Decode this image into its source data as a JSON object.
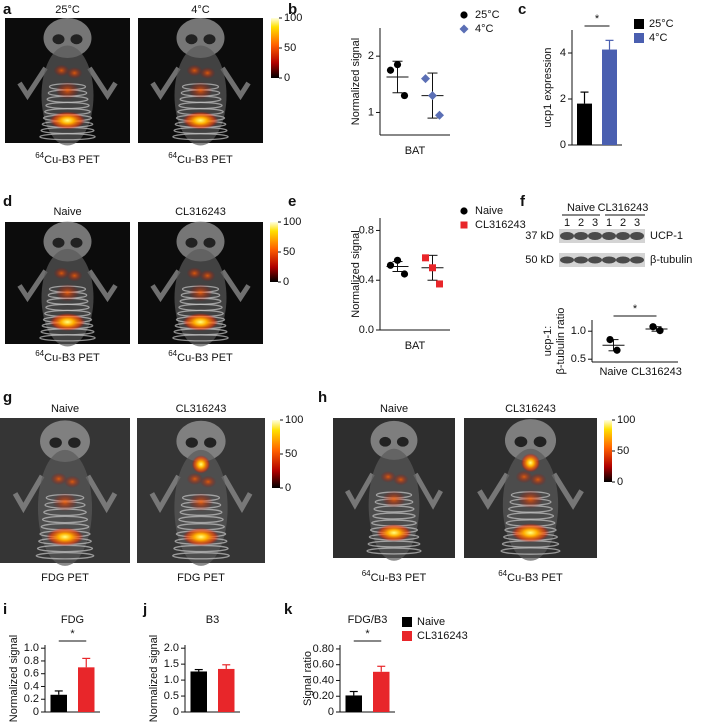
{
  "images": [
    {
      "panel": "a",
      "titles": [
        "25°C",
        "4°C"
      ],
      "captions": [
        {
          "sup": "64",
          "text": "Cu-B3 PET"
        },
        {
          "sup": "64",
          "text": "Cu-B3 PET"
        }
      ],
      "colorbar_range": [
        0,
        100
      ],
      "colorbar_ticks": [
        100,
        50,
        0
      ]
    },
    {
      "panel": "d",
      "titles": [
        "Naive",
        "CL316243"
      ],
      "captions": [
        {
          "sup": "64",
          "text": "Cu-B3 PET"
        },
        {
          "sup": "64",
          "text": "Cu-B3 PET"
        }
      ],
      "colorbar_range": [
        0,
        100
      ],
      "colorbar_ticks": [
        100,
        50,
        0
      ]
    },
    {
      "panel": "g",
      "titles": [
        "Naive",
        "CL316243"
      ],
      "captions": [
        "FDG PET",
        "FDG PET"
      ],
      "colorbar_range": [
        0,
        100
      ],
      "colorbar_ticks": [
        100,
        50,
        0
      ]
    },
    {
      "panel": "h",
      "titles": [
        "Naive",
        "CL316243"
      ],
      "captions": [
        {
          "sup": "64",
          "text": "Cu-B3 PET"
        },
        {
          "sup": "64",
          "text": "Cu-B3 PET"
        }
      ],
      "colorbar_range": [
        0,
        100
      ],
      "colorbar_ticks": [
        100,
        50,
        0
      ]
    }
  ],
  "blot": {
    "groups": [
      "Naive",
      "CL316243"
    ],
    "lanes": [
      "1",
      "2",
      "3",
      "1",
      "2",
      "3"
    ],
    "markers": [
      "37 kD",
      "50 kD"
    ],
    "bands": [
      "UCP-1",
      "β-tubulin"
    ]
  },
  "chart_data": [
    {
      "panel": "b",
      "type": "dot",
      "y_label": "Normalized signal",
      "x_label": "BAT",
      "ylim": [
        0.6,
        2.5
      ],
      "yticks": [
        1,
        2
      ],
      "series": [
        {
          "name": "25°C",
          "color": "#000000",
          "marker": "circle",
          "values": [
            1.75,
            1.85,
            1.3
          ],
          "mean": 1.63,
          "error": 0.28
        },
        {
          "name": "4°C",
          "color": "#5b6fb5",
          "marker": "diamond",
          "values": [
            1.6,
            1.3,
            0.95
          ],
          "mean": 1.3,
          "error": 0.4
        }
      ]
    },
    {
      "panel": "c",
      "type": "bar",
      "y_label": "ucp1 expression",
      "ylim": [
        0,
        5
      ],
      "yticks": [
        0,
        2,
        4
      ],
      "annotation": "*",
      "series": [
        {
          "name": "25°C",
          "color": "#000000",
          "values": [
            1.8
          ],
          "errors": [
            0.5
          ]
        },
        {
          "name": "4°C",
          "color": "#4a5fb0",
          "values": [
            4.15
          ],
          "errors": [
            0.4
          ]
        }
      ]
    },
    {
      "panel": "e",
      "type": "dot",
      "y_label": "Normalized signal",
      "x_label": "BAT",
      "ylim": [
        0,
        0.9
      ],
      "yticks": [
        {
          "value": 0,
          "label": "0.0"
        },
        0.4,
        0.8
      ],
      "series": [
        {
          "name": "Naive",
          "color": "#000000",
          "marker": "circle",
          "values": [
            0.52,
            0.56,
            0.45
          ],
          "mean": 0.51,
          "error": 0.04
        },
        {
          "name": "CL316243",
          "color": "#e8262a",
          "marker": "square",
          "values": [
            0.58,
            0.5,
            0.37
          ],
          "mean": 0.5,
          "error": 0.1
        }
      ]
    },
    {
      "panel": "f",
      "type": "dot",
      "y_label": [
        "ucp-1:",
        "β-tubulin ratio"
      ],
      "categories": [
        "Naive",
        "CL316243"
      ],
      "ylim": [
        0.45,
        1.2
      ],
      "yticks": [
        0.5,
        {
          "value": 1,
          "label": "1.0"
        }
      ],
      "annotation": "*",
      "series": [
        {
          "color": "#000000",
          "marker": "circle",
          "values": [
            0.85,
            0.66
          ],
          "mean": 0.75,
          "error": 0.1
        },
        {
          "color": "#000000",
          "marker": "circle",
          "values": [
            1.08,
            1.01
          ],
          "mean": 1.04,
          "error": 0.04
        }
      ]
    },
    {
      "panel": "i",
      "type": "bar",
      "title": "FDG",
      "y_label": "Normalized signal",
      "ylim": [
        0,
        1.05
      ],
      "yticks": [
        0,
        0.2,
        0.4,
        0.6,
        0.8,
        {
          "value": 1,
          "label": "1.0"
        }
      ],
      "annotation": "*",
      "series": [
        {
          "color": "#000000",
          "values": [
            0.27
          ],
          "errors": [
            0.06
          ]
        },
        {
          "color": "#e8262a",
          "values": [
            0.7
          ],
          "errors": [
            0.14
          ]
        }
      ]
    },
    {
      "panel": "j",
      "type": "bar",
      "title": "B3",
      "y_label": "Normalized signal",
      "ylim": [
        0,
        2.1
      ],
      "yticks": [
        0,
        0.5,
        {
          "value": 1,
          "label": "1.0"
        },
        1.5,
        {
          "value": 2,
          "label": "2.0"
        }
      ],
      "series": [
        {
          "color": "#000000",
          "values": [
            1.27
          ],
          "errors": [
            0.06
          ]
        },
        {
          "color": "#e8262a",
          "values": [
            1.35
          ],
          "errors": [
            0.13
          ]
        }
      ]
    },
    {
      "panel": "k",
      "type": "bar",
      "title": "FDG/B3",
      "y_label": "Signal ratio",
      "ylim": [
        0,
        0.85
      ],
      "yticks": [
        0,
        {
          "value": 0.2,
          "label": "0.20"
        },
        {
          "value": 0.4,
          "label": "0.40"
        },
        {
          "value": 0.6,
          "label": "0.60"
        },
        {
          "value": 0.8,
          "label": "0.80"
        }
      ],
      "annotation": "*",
      "series": [
        {
          "name": "Naive",
          "color": "#000000",
          "values": [
            0.21
          ],
          "errors": [
            0.05
          ]
        },
        {
          "name": "CL316243",
          "color": "#e8262a",
          "values": [
            0.51
          ],
          "errors": [
            0.07
          ]
        }
      ]
    }
  ]
}
